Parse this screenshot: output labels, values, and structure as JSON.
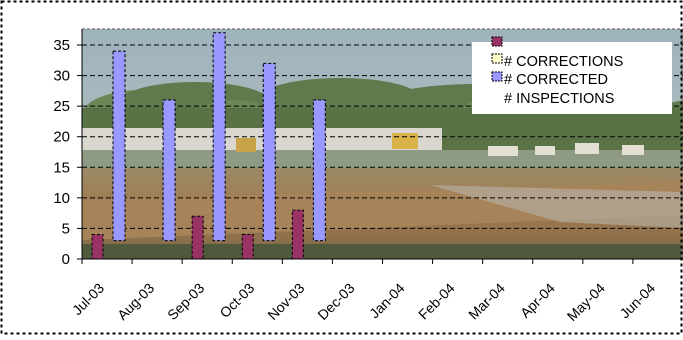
{
  "chart_data": {
    "type": "bar",
    "title": "",
    "xlabel": "",
    "ylabel": "",
    "categories": [
      "Jul-03",
      "Aug-03",
      "Sep-03",
      "Oct-03",
      "Nov-03",
      "Dec-03",
      "Jan-04",
      "Feb-04",
      "Mar-04",
      "Apr-04",
      "May-04",
      "Jun-04"
    ],
    "ylim": [
      0,
      35
    ],
    "yticks": [
      0,
      5,
      10,
      15,
      20,
      25,
      30,
      35
    ],
    "grid": true,
    "legend_position": "top-right",
    "background": "photograph of a landfill site",
    "series": [
      {
        "name": "# CORRECTIONS",
        "color": "#993366",
        "values": [
          4,
          null,
          7,
          4,
          8,
          null,
          null,
          null,
          null,
          null,
          null,
          null
        ]
      },
      {
        "name": "# CORRECTED",
        "color": "#ffffcc",
        "values": [
          null,
          null,
          null,
          null,
          null,
          null,
          null,
          null,
          null,
          null,
          null,
          null
        ]
      },
      {
        "name": "# INSPECTIONS",
        "color": "#9999ff",
        "values": [
          31,
          23,
          34,
          29,
          23,
          null,
          null,
          null,
          null,
          null,
          null,
          null
        ],
        "base": 3
      }
    ]
  }
}
